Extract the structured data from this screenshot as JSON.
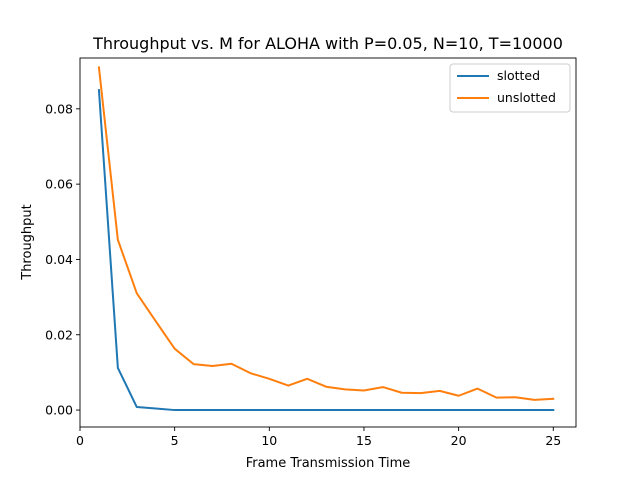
{
  "chart_data": {
    "type": "line",
    "title": "Throughput vs. M for ALOHA with P=0.05, N=10, T=10000",
    "xlabel": "Frame Transmission Time",
    "ylabel": "Throughput",
    "xlim": [
      0,
      26.2
    ],
    "ylim": [
      -0.0045,
      0.0935
    ],
    "xticks": [
      0,
      5,
      10,
      15,
      20,
      25
    ],
    "xtick_labels": [
      "0",
      "5",
      "10",
      "15",
      "20",
      "25"
    ],
    "yticks": [
      0.0,
      0.02,
      0.04,
      0.06,
      0.08
    ],
    "ytick_labels": [
      "0.00",
      "0.02",
      "0.04",
      "0.06",
      "0.08"
    ],
    "grid": false,
    "legend_position": "top-right",
    "x": [
      1,
      2,
      3,
      4,
      5,
      6,
      7,
      8,
      9,
      10,
      11,
      12,
      13,
      14,
      15,
      16,
      17,
      18,
      19,
      20,
      21,
      22,
      23,
      24,
      25
    ],
    "series": [
      {
        "name": "slotted",
        "color": "#1f77b4",
        "values": [
          0.085,
          0.0112,
          0.0008,
          0.0004,
          0.0,
          0.0,
          0.0,
          0.0,
          0.0,
          0.0,
          0.0,
          0.0,
          0.0,
          0.0,
          0.0,
          0.0,
          0.0,
          0.0,
          0.0,
          0.0,
          0.0,
          0.0,
          0.0,
          0.0,
          0.0
        ]
      },
      {
        "name": "unslotted",
        "color": "#ff7f0e",
        "values": [
          0.091,
          0.0452,
          0.031,
          0.0236,
          0.0163,
          0.0122,
          0.0117,
          0.0123,
          0.0098,
          0.0083,
          0.0065,
          0.0083,
          0.0062,
          0.0055,
          0.0052,
          0.0061,
          0.0046,
          0.0045,
          0.0051,
          0.0038,
          0.0057,
          0.0033,
          0.0034,
          0.0027,
          0.003
        ]
      }
    ]
  }
}
